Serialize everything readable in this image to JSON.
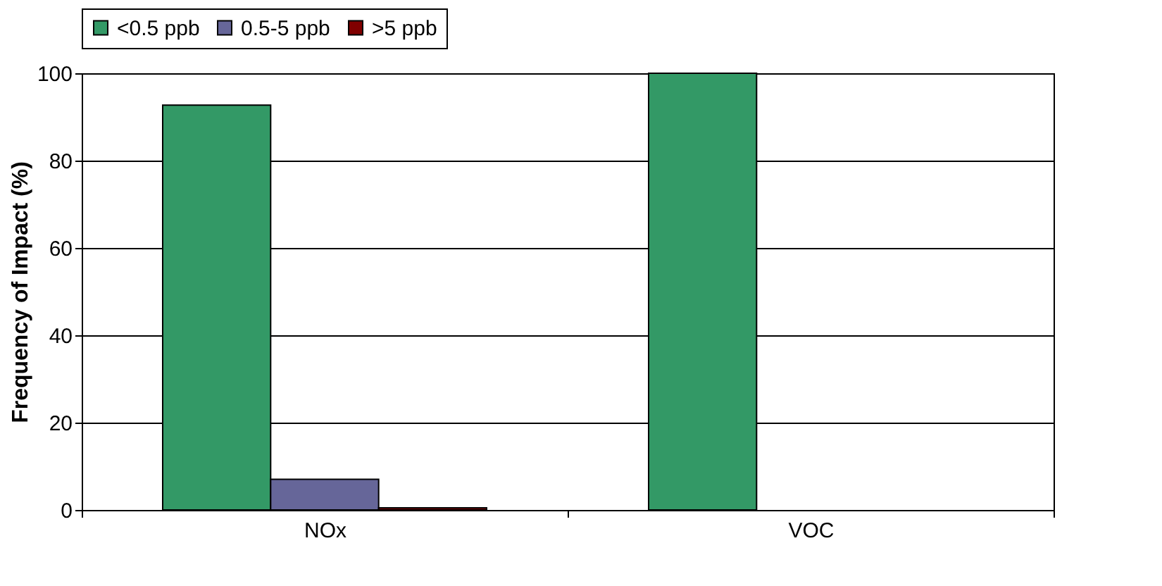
{
  "chart_data": {
    "type": "bar",
    "ylabel": "Frequency of Impact (%)",
    "categories": [
      "NOx",
      "VOC"
    ],
    "series": [
      {
        "name": "<0.5 ppb",
        "color": "#339966",
        "values": [
          92.7,
          100
        ]
      },
      {
        "name": "0.5-5 ppb",
        "color": "#666699",
        "values": [
          7,
          0
        ]
      },
      {
        "name": ">5 ppb",
        "color": "#800000",
        "values": [
          0.5,
          0
        ]
      }
    ],
    "ylim": [
      0,
      100
    ],
    "yticks": [
      0,
      20,
      40,
      60,
      80,
      100
    ],
    "grid": "y",
    "legend": "top"
  }
}
